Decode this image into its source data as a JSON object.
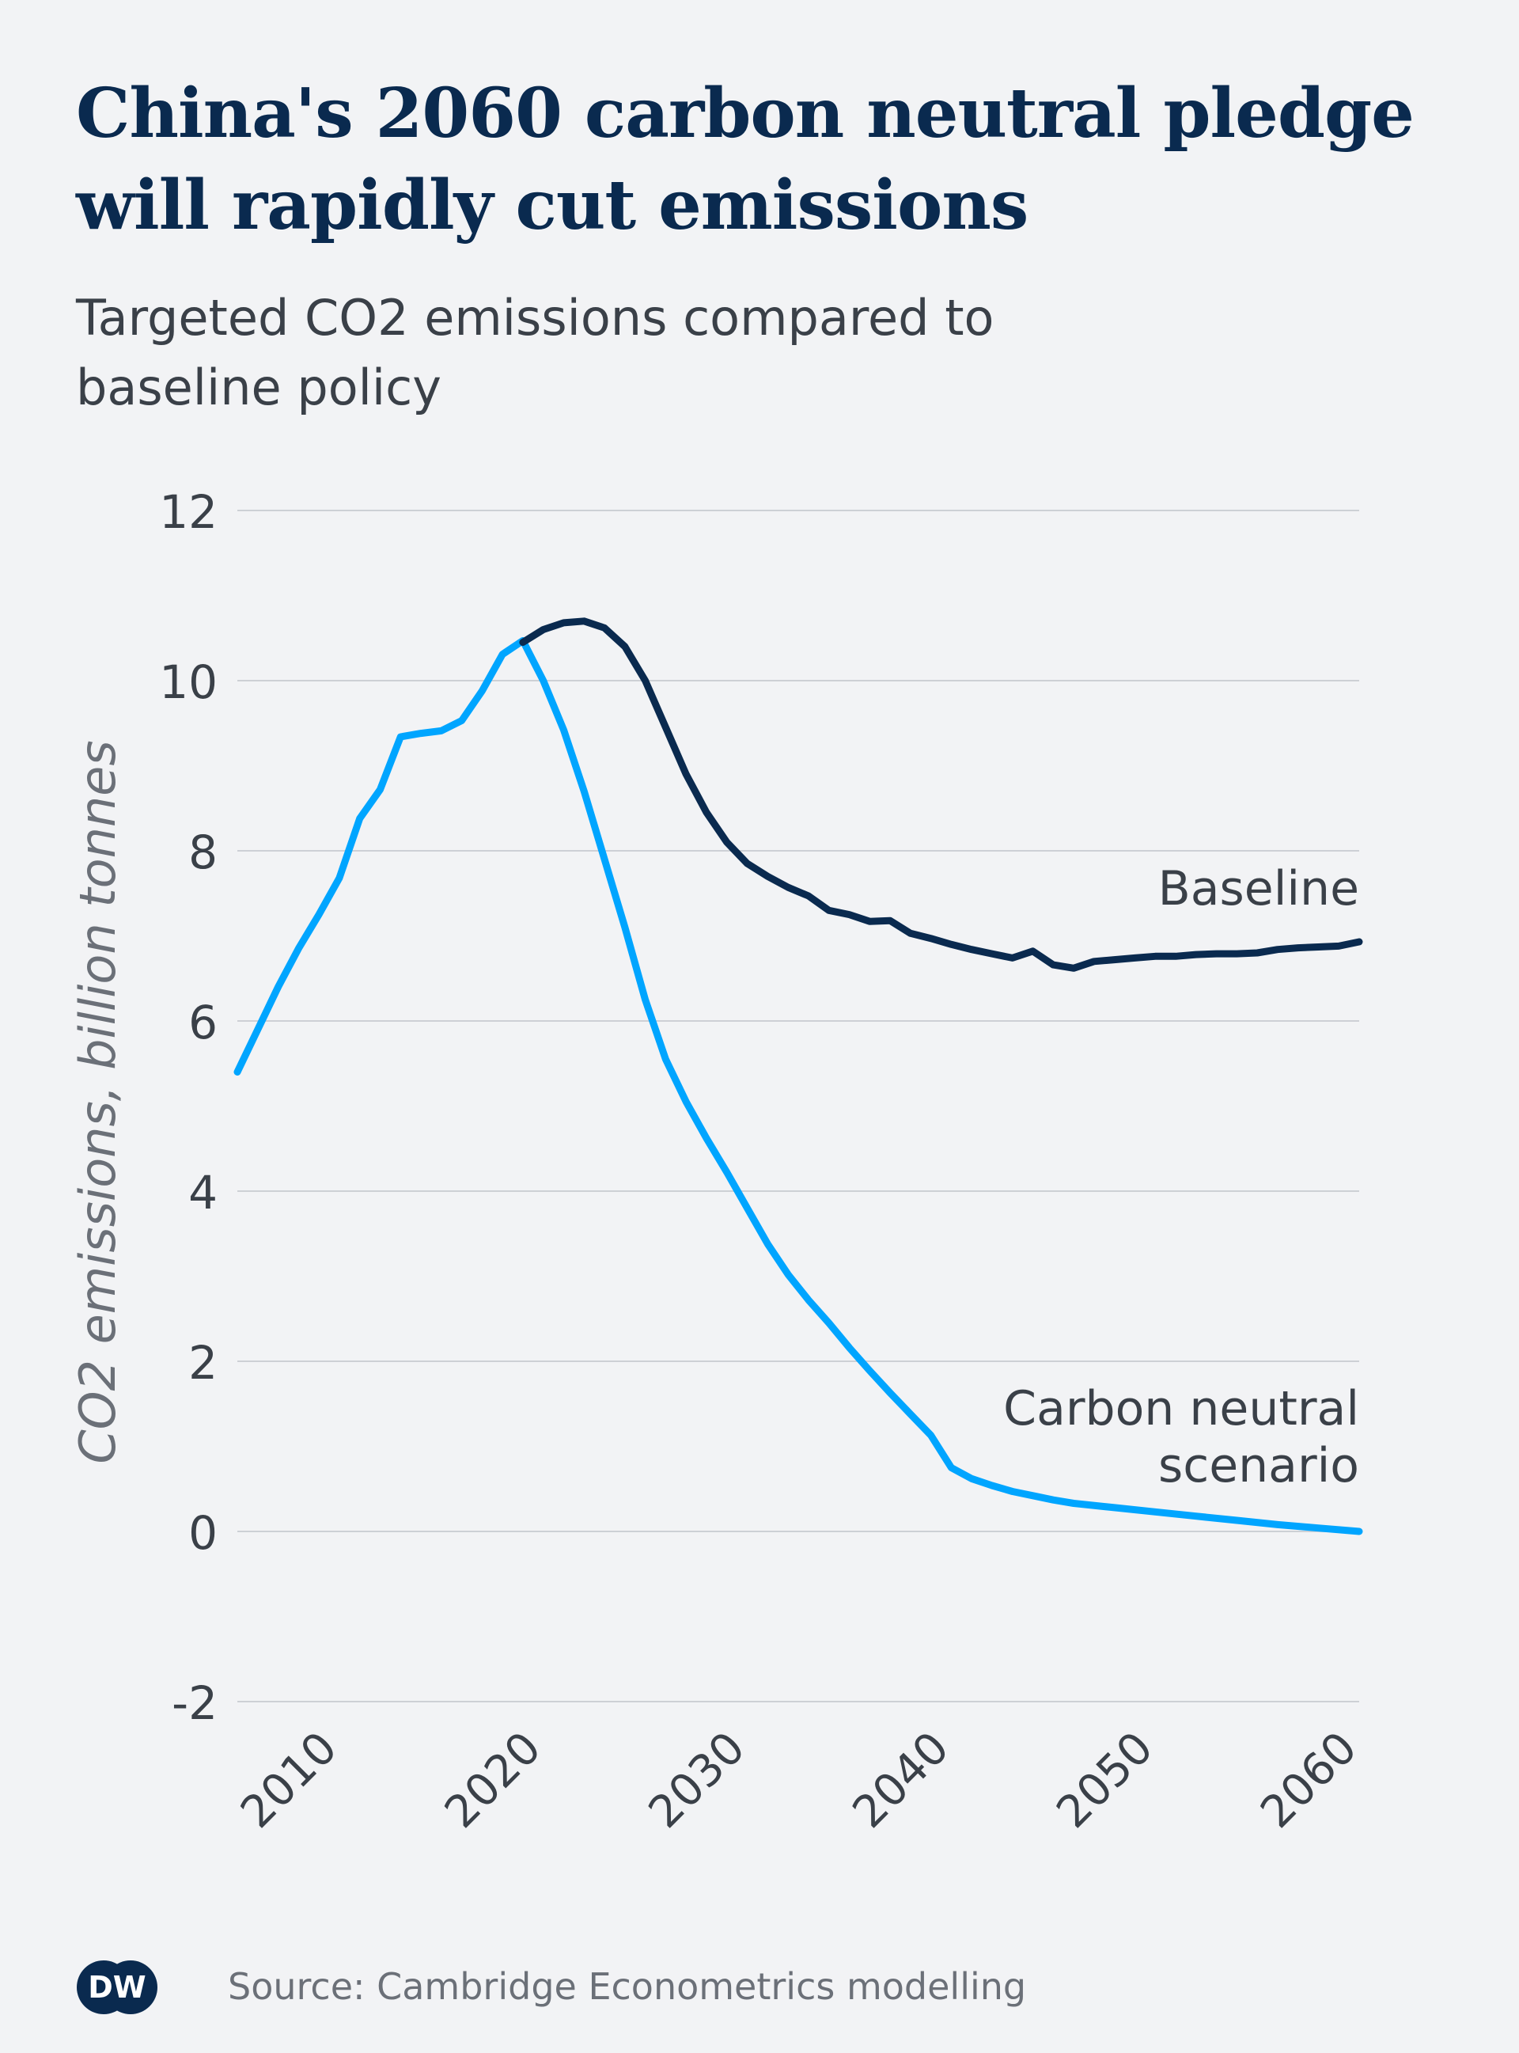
{
  "title": "China's 2060 carbon neutral pledge will rapidly cut emissions",
  "subtitle": "Targeted CO2 emissions compared to baseline policy",
  "source": "Source: Cambridge Econometrics modelling",
  "logo_text": "DW",
  "colors": {
    "baseline": "#0a2a4f",
    "carbon_neutral": "#00a5ff",
    "grid": "#cdd0d5",
    "text": "#3a4048",
    "background": "#f2f3f5"
  },
  "chart_data": {
    "type": "line",
    "title": "China's 2060 carbon neutral pledge will rapidly cut emissions",
    "subtitle": "Targeted CO2 emissions compared to baseline policy",
    "xlabel": "",
    "ylabel": "CO2 emissions, billion tonnes",
    "xlim": [
      2005,
      2060
    ],
    "ylim": [
      -2,
      12
    ],
    "xticks": [
      2010,
      2020,
      2030,
      2040,
      2050,
      2060
    ],
    "yticks": [
      -2,
      0,
      2,
      4,
      6,
      8,
      10,
      12
    ],
    "grid": true,
    "legend": "direct labels at line ends",
    "series": [
      {
        "name": "Baseline",
        "x": [
          2019,
          2020,
          2021,
          2022,
          2023,
          2024,
          2025,
          2026,
          2027,
          2028,
          2029,
          2030,
          2031,
          2032,
          2033,
          2034,
          2035,
          2036,
          2037,
          2038,
          2039,
          2040,
          2041,
          2042,
          2043,
          2044,
          2045,
          2046,
          2047,
          2048,
          2049,
          2050,
          2051,
          2052,
          2053,
          2054,
          2055,
          2056,
          2057,
          2058,
          2059,
          2060
        ],
        "values": [
          10.45,
          10.6,
          10.68,
          10.7,
          10.62,
          10.4,
          10.0,
          9.45,
          8.9,
          8.45,
          8.1,
          7.85,
          7.7,
          7.57,
          7.47,
          7.3,
          7.25,
          7.17,
          7.18,
          7.03,
          6.97,
          6.9,
          6.84,
          6.79,
          6.74,
          6.82,
          6.66,
          6.62,
          6.7,
          6.72,
          6.74,
          6.76,
          6.76,
          6.78,
          6.79,
          6.79,
          6.8,
          6.84,
          6.86,
          6.87,
          6.88,
          6.93
        ]
      },
      {
        "name": "Carbon neutral scenario",
        "x": [
          2005,
          2006,
          2007,
          2008,
          2009,
          2010,
          2011,
          2012,
          2013,
          2014,
          2015,
          2016,
          2017,
          2018,
          2019,
          2020,
          2021,
          2022,
          2023,
          2024,
          2025,
          2026,
          2027,
          2028,
          2029,
          2030,
          2031,
          2032,
          2033,
          2034,
          2035,
          2036,
          2037,
          2038,
          2039,
          2040,
          2041,
          2042,
          2043,
          2044,
          2045,
          2046,
          2048,
          2050,
          2052,
          2054,
          2056,
          2058,
          2060
        ],
        "values": [
          5.4,
          5.9,
          6.4,
          6.85,
          7.25,
          7.68,
          8.38,
          8.72,
          9.34,
          9.38,
          9.41,
          9.53,
          9.88,
          10.31,
          10.47,
          10.0,
          9.42,
          8.7,
          7.9,
          7.1,
          6.25,
          5.55,
          5.05,
          4.62,
          4.22,
          3.8,
          3.38,
          3.02,
          2.72,
          2.45,
          2.16,
          1.89,
          1.63,
          1.38,
          1.13,
          0.75,
          0.62,
          0.54,
          0.47,
          0.42,
          0.37,
          0.33,
          0.28,
          0.23,
          0.18,
          0.13,
          0.08,
          0.04,
          0.0
        ]
      }
    ],
    "annotations": [
      {
        "text": "Baseline",
        "series": "Baseline"
      },
      {
        "text": "Carbon neutral\nscenario",
        "series": "Carbon neutral scenario"
      }
    ]
  }
}
